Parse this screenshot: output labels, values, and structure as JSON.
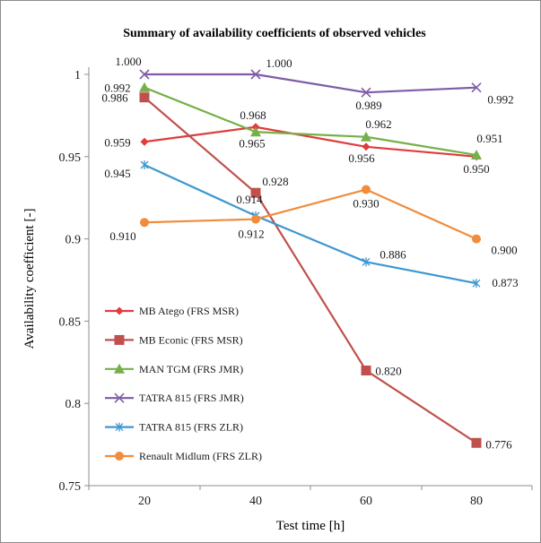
{
  "chart_data": {
    "type": "line",
    "title": "Summary of availability coefficients of  observed vehicles",
    "xlabel": "Test time [h]",
    "ylabel": "Availability  coefficient [-]",
    "categories": [
      "20",
      "40",
      "60",
      "80"
    ],
    "ylim": [
      0.75,
      1.0
    ],
    "yticks": [
      "0.75",
      "0.8",
      "0.85",
      "0.9",
      "0.95",
      "1"
    ],
    "ytick_values": [
      0.75,
      0.8,
      0.85,
      0.9,
      0.95,
      1.0
    ],
    "grid": false,
    "legend_position": "bottom-left",
    "series": [
      {
        "name": "MB Atego (FRS MSR)",
        "values": [
          0.959,
          0.968,
          0.956,
          0.95
        ],
        "labels": [
          "0.959",
          "0.968",
          "0.956",
          "0.950"
        ],
        "color": "#e03c3c",
        "marker": "diamond"
      },
      {
        "name": "MB Econic (FRS MSR)",
        "values": [
          0.986,
          0.928,
          0.82,
          0.776
        ],
        "labels": [
          "0.986",
          "0.928",
          "0.820",
          "0.776"
        ],
        "color": "#c0504d",
        "marker": "square"
      },
      {
        "name": "MAN TGM (FRS JMR)",
        "values": [
          0.992,
          0.965,
          0.962,
          0.951
        ],
        "labels": [
          "0.992",
          "0.965",
          "0.962",
          "0.951"
        ],
        "color": "#77b04a",
        "marker": "triangle"
      },
      {
        "name": "TATRA 815 (FRS JMR)",
        "values": [
          1.0,
          1.0,
          0.989,
          0.992
        ],
        "labels": [
          "1.000",
          "1.000",
          "0.989",
          "0.992"
        ],
        "color": "#7e5ca6",
        "marker": "x"
      },
      {
        "name": "TATRA 815 (FRS ZLR)",
        "values": [
          0.945,
          0.914,
          0.886,
          0.873
        ],
        "labels": [
          "0.945",
          "0.914",
          "0.886",
          "0.873"
        ],
        "color": "#3e97d1",
        "marker": "asterisk"
      },
      {
        "name": "Renault Midlum (FRS ZLR)",
        "values": [
          0.91,
          0.912,
          0.93,
          0.9
        ],
        "labels": [
          "0.910",
          "0.912",
          "0.930",
          "0.900"
        ],
        "color": "#f08c3c",
        "marker": "circle"
      }
    ]
  }
}
